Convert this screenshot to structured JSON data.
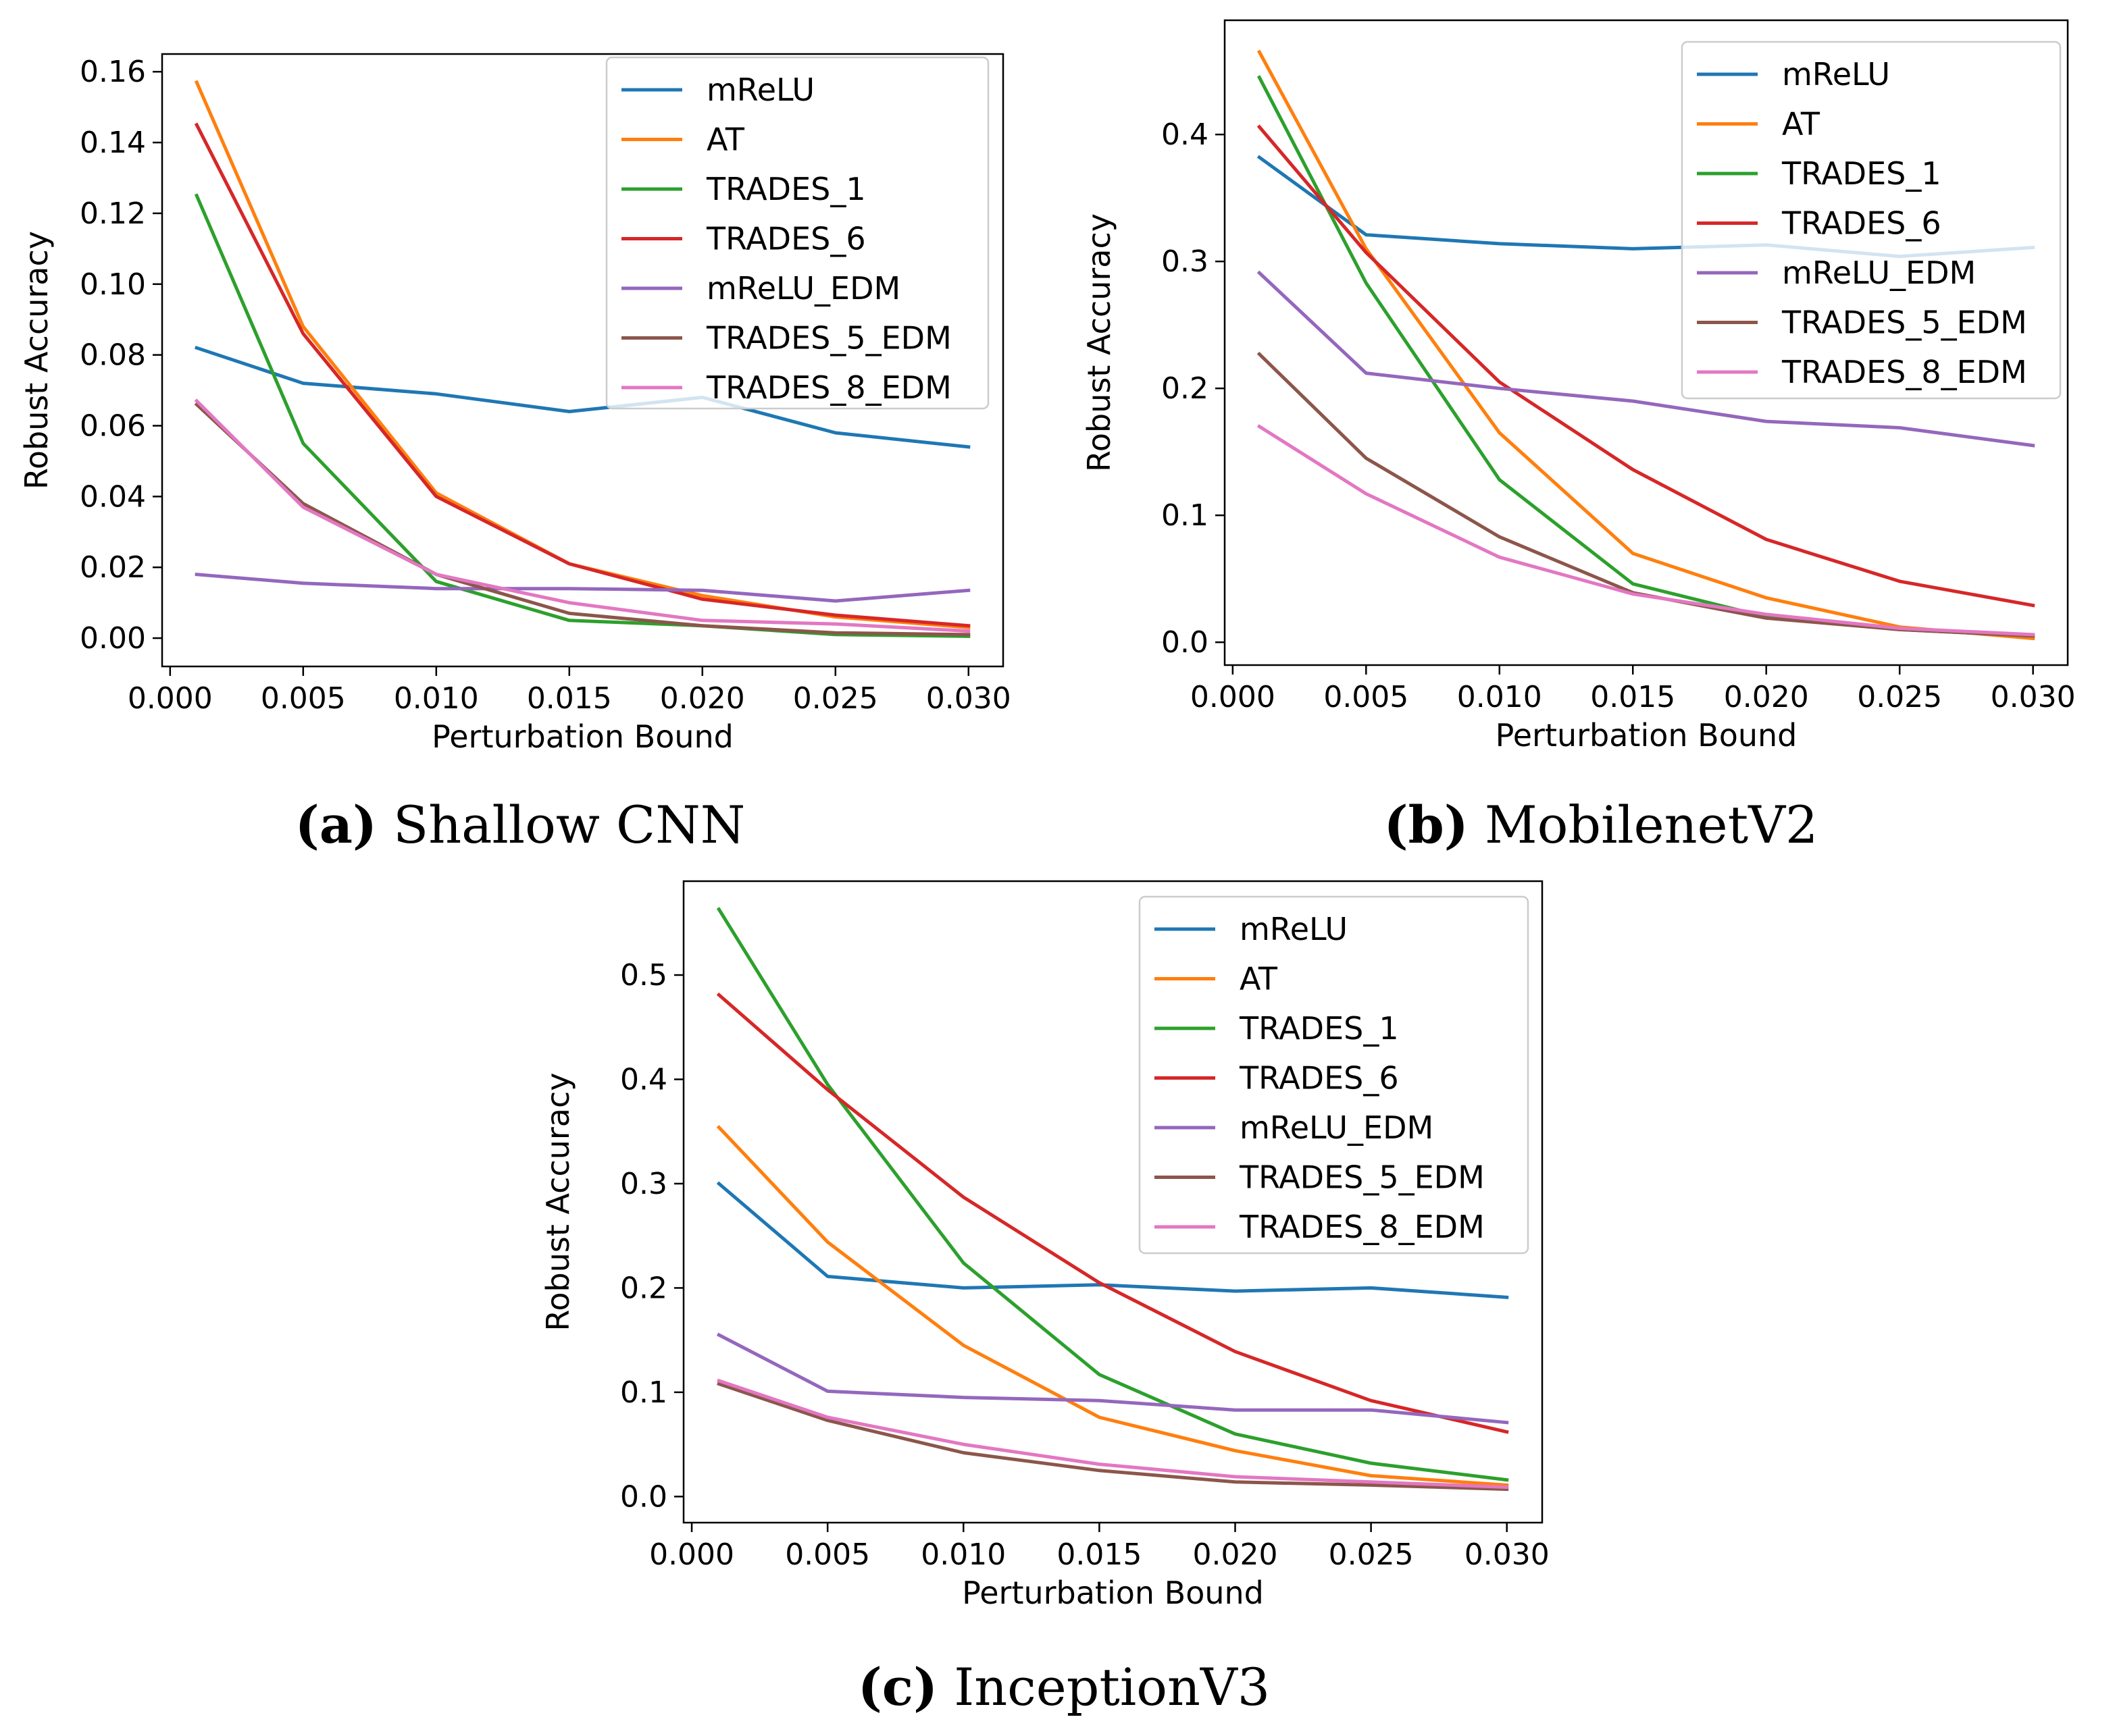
{
  "colors": {
    "mReLU": "#1f77b4",
    "AT": "#ff7f0e",
    "TRADES_1": "#2ca02c",
    "TRADES_6": "#d62728",
    "mReLU_EDM": "#9467bd",
    "TRADES_5_EDM": "#8c564b",
    "TRADES_8_EDM": "#e377c2"
  },
  "chart_data": [
    {
      "type": "line",
      "caption_letter": "(a)",
      "caption_text": "Shallow CNN",
      "xlabel": "Perturbation Bound",
      "ylabel": "Robust Accuracy",
      "x": [
        0.001,
        0.005,
        0.01,
        0.015,
        0.02,
        0.025,
        0.03
      ],
      "xlim": [
        -0.0003,
        0.0313
      ],
      "ylim": [
        -0.008,
        0.165
      ],
      "xticks": [
        0.0,
        0.005,
        0.01,
        0.015,
        0.02,
        0.025,
        0.03
      ],
      "xtick_labels": [
        "0.000",
        "0.005",
        "0.010",
        "0.015",
        "0.020",
        "0.025",
        "0.030"
      ],
      "yticks": [
        0.0,
        0.02,
        0.04,
        0.06,
        0.08,
        0.1,
        0.12,
        0.14,
        0.16
      ],
      "ytick_labels": [
        "0.00",
        "0.02",
        "0.04",
        "0.06",
        "0.08",
        "0.10",
        "0.12",
        "0.14",
        "0.16"
      ],
      "legend_position": "upper right",
      "series": [
        {
          "name": "mReLU",
          "values": [
            0.082,
            0.072,
            0.069,
            0.064,
            0.068,
            0.058,
            0.054
          ]
        },
        {
          "name": "AT",
          "values": [
            0.157,
            0.088,
            0.041,
            0.021,
            0.012,
            0.006,
            0.003
          ]
        },
        {
          "name": "TRADES_1",
          "values": [
            0.125,
            0.055,
            0.016,
            0.005,
            0.0035,
            0.001,
            0.0005
          ]
        },
        {
          "name": "TRADES_6",
          "values": [
            0.145,
            0.086,
            0.04,
            0.021,
            0.011,
            0.0065,
            0.0035
          ]
        },
        {
          "name": "mReLU_EDM",
          "values": [
            0.018,
            0.0155,
            0.014,
            0.014,
            0.0135,
            0.0105,
            0.0135
          ]
        },
        {
          "name": "TRADES_5_EDM",
          "values": [
            0.066,
            0.038,
            0.018,
            0.007,
            0.0035,
            0.0015,
            0.001
          ]
        },
        {
          "name": "TRADES_8_EDM",
          "values": [
            0.067,
            0.037,
            0.018,
            0.01,
            0.005,
            0.004,
            0.002
          ]
        }
      ]
    },
    {
      "type": "line",
      "caption_letter": "(b)",
      "caption_text": "MobilenetV2",
      "xlabel": "Perturbation Bound",
      "ylabel": "Robust Accuracy",
      "x": [
        0.001,
        0.005,
        0.01,
        0.015,
        0.02,
        0.025,
        0.03
      ],
      "xlim": [
        -0.0003,
        0.0313
      ],
      "ylim": [
        -0.018,
        0.49
      ],
      "xticks": [
        0.0,
        0.005,
        0.01,
        0.015,
        0.02,
        0.025,
        0.03
      ],
      "xtick_labels": [
        "0.000",
        "0.005",
        "0.010",
        "0.015",
        "0.020",
        "0.025",
        "0.030"
      ],
      "yticks": [
        0.0,
        0.1,
        0.2,
        0.3,
        0.4
      ],
      "ytick_labels": [
        "0.0",
        "0.1",
        "0.2",
        "0.3",
        "0.4"
      ],
      "legend_position": "upper right",
      "series": [
        {
          "name": "mReLU",
          "values": [
            0.382,
            0.321,
            0.314,
            0.31,
            0.313,
            0.304,
            0.311
          ]
        },
        {
          "name": "AT",
          "values": [
            0.465,
            0.31,
            0.165,
            0.07,
            0.035,
            0.012,
            0.003
          ]
        },
        {
          "name": "TRADES_1",
          "values": [
            0.445,
            0.283,
            0.128,
            0.046,
            0.02,
            0.01,
            0.005
          ]
        },
        {
          "name": "TRADES_6",
          "values": [
            0.406,
            0.307,
            0.205,
            0.136,
            0.081,
            0.048,
            0.029
          ]
        },
        {
          "name": "mReLU_EDM",
          "values": [
            0.291,
            0.212,
            0.2,
            0.19,
            0.174,
            0.169,
            0.155
          ]
        },
        {
          "name": "TRADES_5_EDM",
          "values": [
            0.227,
            0.145,
            0.083,
            0.039,
            0.019,
            0.01,
            0.005
          ]
        },
        {
          "name": "TRADES_8_EDM",
          "values": [
            0.17,
            0.117,
            0.067,
            0.038,
            0.022,
            0.011,
            0.006
          ]
        }
      ]
    },
    {
      "type": "line",
      "caption_letter": "(c)",
      "caption_text": "InceptionV3",
      "xlabel": "Perturbation Bound",
      "ylabel": "Robust Accuracy",
      "x": [
        0.001,
        0.005,
        0.01,
        0.015,
        0.02,
        0.025,
        0.03
      ],
      "xlim": [
        -0.0003,
        0.0313
      ],
      "ylim": [
        -0.025,
        0.59
      ],
      "xticks": [
        0.0,
        0.005,
        0.01,
        0.015,
        0.02,
        0.025,
        0.03
      ],
      "xtick_labels": [
        "0.000",
        "0.005",
        "0.010",
        "0.015",
        "0.020",
        "0.025",
        "0.030"
      ],
      "yticks": [
        0.0,
        0.1,
        0.2,
        0.3,
        0.4,
        0.5
      ],
      "ytick_labels": [
        "0.0",
        "0.1",
        "0.2",
        "0.3",
        "0.4",
        "0.5"
      ],
      "legend_position": "upper right",
      "series": [
        {
          "name": "mReLU",
          "values": [
            0.3,
            0.211,
            0.2,
            0.203,
            0.197,
            0.2,
            0.191
          ]
        },
        {
          "name": "AT",
          "values": [
            0.354,
            0.244,
            0.145,
            0.076,
            0.044,
            0.02,
            0.011
          ]
        },
        {
          "name": "TRADES_1",
          "values": [
            0.563,
            0.395,
            0.224,
            0.117,
            0.06,
            0.032,
            0.016
          ]
        },
        {
          "name": "TRADES_6",
          "values": [
            0.481,
            0.39,
            0.287,
            0.205,
            0.139,
            0.092,
            0.062
          ]
        },
        {
          "name": "mReLU_EDM",
          "values": [
            0.155,
            0.101,
            0.095,
            0.092,
            0.083,
            0.083,
            0.071
          ]
        },
        {
          "name": "TRADES_5_EDM",
          "values": [
            0.108,
            0.073,
            0.042,
            0.025,
            0.014,
            0.011,
            0.007
          ]
        },
        {
          "name": "TRADES_8_EDM",
          "values": [
            0.111,
            0.076,
            0.05,
            0.031,
            0.019,
            0.014,
            0.009
          ]
        }
      ]
    }
  ]
}
